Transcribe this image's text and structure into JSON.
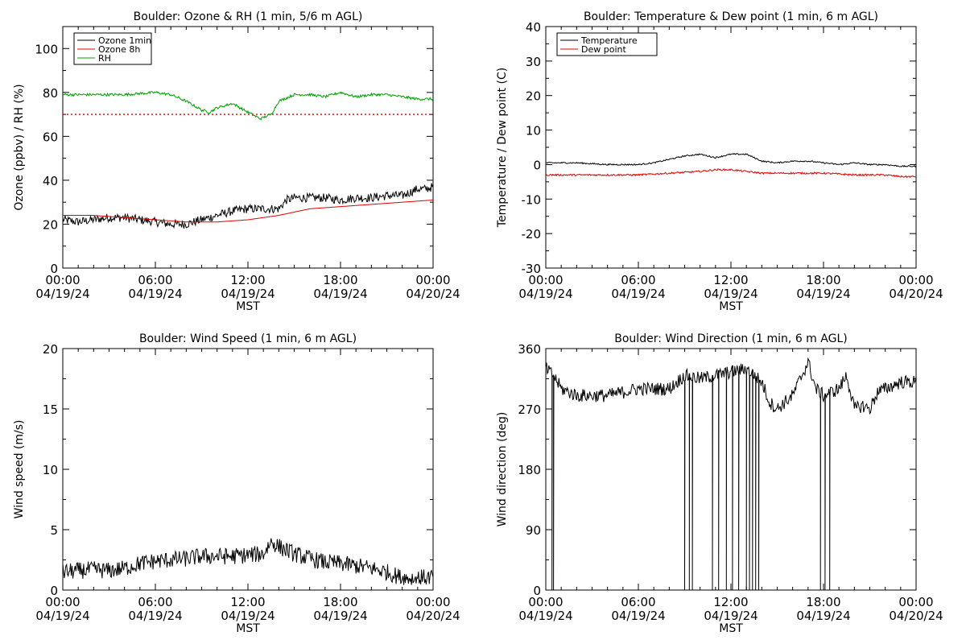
{
  "chart_data": [
    {
      "type": "line",
      "title": "Boulder: Ozone & RH (1 min, 5/6 m AGL)",
      "ylabel": "Ozone (ppbv) / RH (%)",
      "xlabel": "MST",
      "xlim": [
        0,
        24
      ],
      "ylim": [
        0,
        110
      ],
      "yticks": [
        0,
        20,
        40,
        60,
        80,
        100
      ],
      "legend": "top-left",
      "series": [
        {
          "name": "Ozone 1min",
          "color": "#000000",
          "noise": 2.0,
          "x": [
            0,
            1,
            2,
            3,
            4,
            5,
            6,
            7,
            8,
            9,
            10,
            11,
            12,
            13,
            14,
            14.5,
            15,
            16,
            17,
            18,
            19,
            20,
            21,
            22,
            23,
            23.5,
            24
          ],
          "y": [
            22,
            21,
            22,
            23,
            23,
            22,
            21,
            20,
            20,
            22,
            24,
            26,
            27,
            27,
            27,
            31,
            32,
            32,
            32,
            31,
            32,
            32,
            33,
            33,
            36,
            36,
            37
          ]
        },
        {
          "name": "Ozone 8h",
          "color": "#e00000",
          "noise": 0,
          "x": [
            0,
            2,
            4,
            6,
            8,
            10,
            12,
            13,
            14,
            16,
            18,
            20,
            22,
            24
          ],
          "y": [
            24,
            24,
            23,
            22,
            21,
            21,
            22,
            23,
            24,
            27,
            28,
            29,
            30,
            31
          ]
        },
        {
          "name": "RH",
          "color": "#00a000",
          "noise": 0.6,
          "x": [
            0,
            1,
            2,
            4,
            6,
            7,
            8,
            9,
            9.5,
            10,
            11,
            12,
            12.8,
            13.5,
            14,
            15,
            16,
            17,
            18,
            19,
            20,
            21,
            22,
            23,
            24
          ],
          "y": [
            79,
            79,
            79,
            79,
            80,
            79,
            76,
            72,
            71,
            73,
            75,
            71,
            68,
            70,
            76,
            79,
            79,
            78,
            80,
            78,
            79,
            79,
            78,
            77,
            77
          ]
        }
      ],
      "reference_lines": [
        {
          "y": 70,
          "color": "#e00000",
          "style": "dotted"
        }
      ]
    },
    {
      "type": "line",
      "title": "Boulder: Temperature & Dew point (1 min, 6 m AGL)",
      "ylabel": "Temperature / Dew point (C)",
      "xlabel": "MST",
      "xlim": [
        0,
        24
      ],
      "ylim": [
        -30,
        40
      ],
      "yticks": [
        -30,
        -20,
        -10,
        0,
        10,
        20,
        30,
        40
      ],
      "legend": "top-left",
      "series": [
        {
          "name": "Temperature",
          "color": "#000000",
          "noise": 0.2,
          "x": [
            0,
            2,
            4,
            6,
            7,
            8,
            9,
            10,
            11,
            12,
            13,
            14,
            15,
            16,
            17,
            18,
            19,
            20,
            21,
            22,
            23,
            24
          ],
          "y": [
            0.5,
            0.5,
            0,
            0,
            0.5,
            1.5,
            2.5,
            3,
            2,
            3,
            3,
            1,
            0.5,
            1,
            1,
            0.5,
            0,
            0.5,
            0,
            0,
            -0.5,
            -0.5
          ]
        },
        {
          "name": "Dew point",
          "color": "#e00000",
          "noise": 0.25,
          "x": [
            0,
            2,
            4,
            6,
            8,
            10,
            11,
            12,
            13,
            14,
            16,
            18,
            20,
            22,
            23,
            24
          ],
          "y": [
            -3,
            -3,
            -3,
            -3,
            -2.5,
            -2,
            -1.5,
            -1.5,
            -2,
            -2.5,
            -2.5,
            -2.5,
            -3,
            -3,
            -3.5,
            -3.5
          ]
        }
      ]
    },
    {
      "type": "line",
      "title": "Boulder: Wind Speed (1 min, 6 m AGL)",
      "ylabel": "Wind speed (m/s)",
      "xlabel": "MST",
      "xlim": [
        0,
        24
      ],
      "ylim": [
        0,
        20
      ],
      "yticks": [
        0,
        5,
        10,
        15,
        20
      ],
      "series": [
        {
          "name": "",
          "color": "#000000",
          "noise": 0.7,
          "x": [
            0,
            1,
            2,
            3,
            4,
            5,
            6,
            7,
            8,
            9,
            10,
            11,
            12,
            13,
            13.5,
            14,
            15,
            16,
            17,
            18,
            19,
            20,
            21,
            22,
            23,
            24
          ],
          "y": [
            1.5,
            1.6,
            1.7,
            1.6,
            1.8,
            2.2,
            2.4,
            2.5,
            2.6,
            2.8,
            2.8,
            2.8,
            2.9,
            3,
            4,
            3.6,
            3,
            2.6,
            2.3,
            2.2,
            2,
            1.8,
            1.5,
            1,
            1,
            1.1
          ]
        }
      ]
    },
    {
      "type": "line",
      "title": "Boulder: Wind Direction (1 min, 6 m AGL)",
      "ylabel": "Wind direction (deg)",
      "xlabel": "MST",
      "xlim": [
        0,
        24
      ],
      "ylim": [
        0,
        360
      ],
      "yticks": [
        0,
        90,
        180,
        270,
        360
      ],
      "series": [
        {
          "name": "",
          "color": "#000000",
          "noise": 10,
          "x": [
            0,
            0.5,
            1,
            2,
            3,
            4,
            5,
            6,
            7,
            8,
            8.5,
            9,
            10,
            11,
            12,
            13,
            14,
            14.5,
            15,
            16,
            17,
            17.5,
            18,
            19,
            19.5,
            20,
            20.5,
            21,
            21.5,
            22,
            23,
            24
          ],
          "y": [
            330,
            320,
            300,
            290,
            290,
            290,
            295,
            300,
            300,
            300,
            310,
            320,
            315,
            320,
            325,
            330,
            310,
            280,
            270,
            290,
            340,
            300,
            290,
            300,
            320,
            270,
            275,
            270,
            295,
            300,
            310,
            310
          ]
        }
      ],
      "drops": [
        0.4,
        0.5,
        9.0,
        9.3,
        9.5,
        10.8,
        11.2,
        11.7,
        12.1,
        12.5,
        13.0,
        13.2,
        13.4,
        13.6,
        13.8,
        17.8,
        18.1,
        18.4
      ]
    }
  ],
  "time_axis": {
    "ticks": [
      {
        "time": "00:00",
        "date": "04/19/24"
      },
      {
        "time": "06:00",
        "date": "04/19/24"
      },
      {
        "time": "12:00",
        "date": "04/19/24"
      },
      {
        "time": "18:00",
        "date": "04/19/24"
      },
      {
        "time": "00:00",
        "date": "04/20/24"
      }
    ]
  }
}
